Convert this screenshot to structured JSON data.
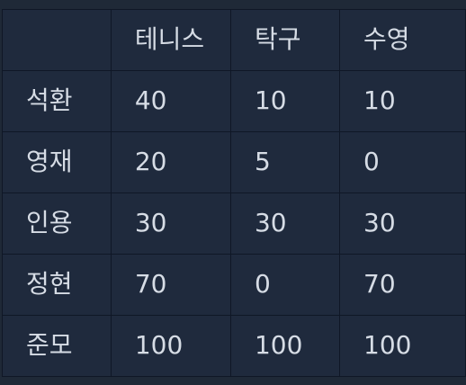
{
  "table": {
    "headers": [
      "",
      "테니스",
      "탁구",
      "수영"
    ],
    "rows": [
      {
        "name": "석환",
        "values": [
          "40",
          "10",
          "10"
        ]
      },
      {
        "name": "영재",
        "values": [
          "20",
          "5",
          "0"
        ]
      },
      {
        "name": "인용",
        "values": [
          "30",
          "30",
          "30"
        ]
      },
      {
        "name": "정현",
        "values": [
          "70",
          "0",
          "70"
        ]
      },
      {
        "name": "준모",
        "values": [
          "100",
          "100",
          "100"
        ]
      }
    ]
  },
  "colors": {
    "background": "#1f2937",
    "cell_background": "#1f2a3d",
    "border": "#0f1726",
    "text": "#d6dce5"
  }
}
